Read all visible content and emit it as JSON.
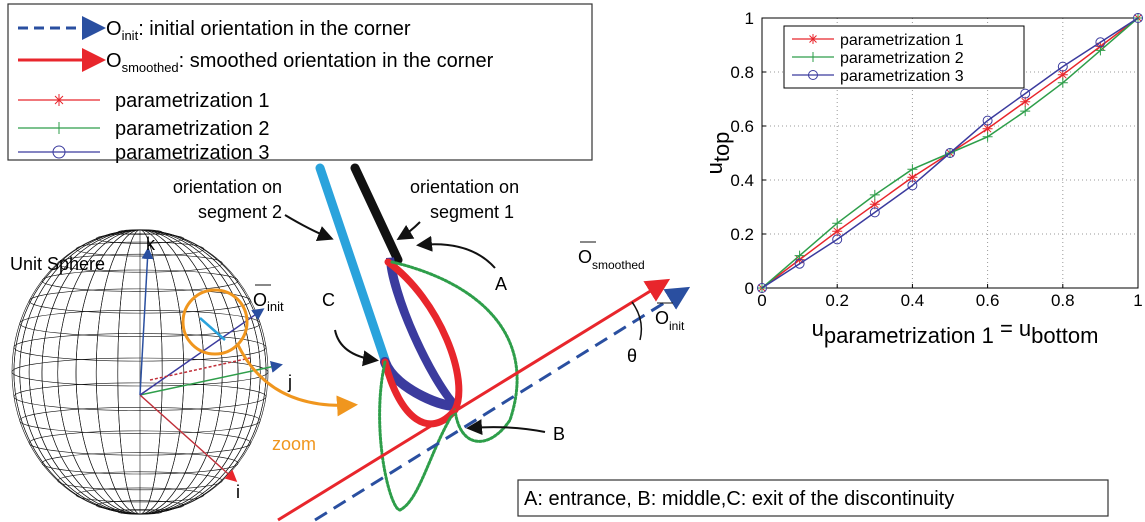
{
  "legend_box": {
    "entries": [
      {
        "symbol": "O",
        "sub": "init",
        "text": ": initial orientation in the corner"
      },
      {
        "symbol": "O",
        "sub": "smoothed",
        "text": ": smoothed orientation in the corner"
      },
      {
        "text": "parametrization 1"
      },
      {
        "text": "parametrization 2"
      },
      {
        "text": "parametrization 3"
      }
    ]
  },
  "labels": {
    "unit_sphere": "Unit Sphere",
    "k": "k",
    "j": "j",
    "i": "i",
    "zoom": "zoom",
    "o_init_sphere": {
      "symbol": "O",
      "sub": "init"
    },
    "segment2": [
      "orientation on",
      "segment 2"
    ],
    "segment1": [
      "orientation on",
      "segment 1"
    ],
    "A": "A",
    "B": "B",
    "C": "C",
    "theta": "θ",
    "o_smoothed": {
      "symbol": "O",
      "sub": "smoothed"
    },
    "o_init": {
      "symbol": "O",
      "sub": "init"
    }
  },
  "caption_box": "A: entrance, B: middle,C: exit of the discontinuity",
  "chart_data": {
    "type": "line",
    "xlabel": [
      {
        "text": "u"
      },
      {
        "text": "parametrization 1",
        "sub": true
      },
      {
        "text": " = u"
      },
      {
        "text": "bottom",
        "sub": true
      }
    ],
    "ylabel": [
      {
        "text": "u"
      },
      {
        "text": "top",
        "sub": true
      }
    ],
    "x": [
      0,
      0.1,
      0.2,
      0.3,
      0.4,
      0.5,
      0.6,
      0.7,
      0.8,
      0.9,
      1
    ],
    "series": [
      {
        "name": "parametrization 1",
        "color": "#e8262c",
        "marker": "*",
        "values": [
          0,
          0.105,
          0.21,
          0.31,
          0.41,
          0.5,
          0.59,
          0.69,
          0.79,
          0.895,
          1
        ]
      },
      {
        "name": "parametrization 2",
        "color": "#2e9e4a",
        "marker": "+",
        "values": [
          0,
          0.12,
          0.24,
          0.345,
          0.44,
          0.5,
          0.56,
          0.655,
          0.76,
          0.88,
          1
        ]
      },
      {
        "name": "parametrization 3",
        "color": "#3b3b9e",
        "marker": "o",
        "values": [
          0,
          0.09,
          0.18,
          0.28,
          0.38,
          0.5,
          0.62,
          0.72,
          0.82,
          0.91,
          1
        ]
      }
    ],
    "xlim": [
      0,
      1
    ],
    "ylim": [
      0,
      1
    ],
    "xticks": [
      0,
      0.2,
      0.4,
      0.6,
      0.8,
      1
    ],
    "yticks": [
      0,
      0.2,
      0.4,
      0.6,
      0.8,
      1
    ],
    "grid": true,
    "legend": "upper left"
  }
}
